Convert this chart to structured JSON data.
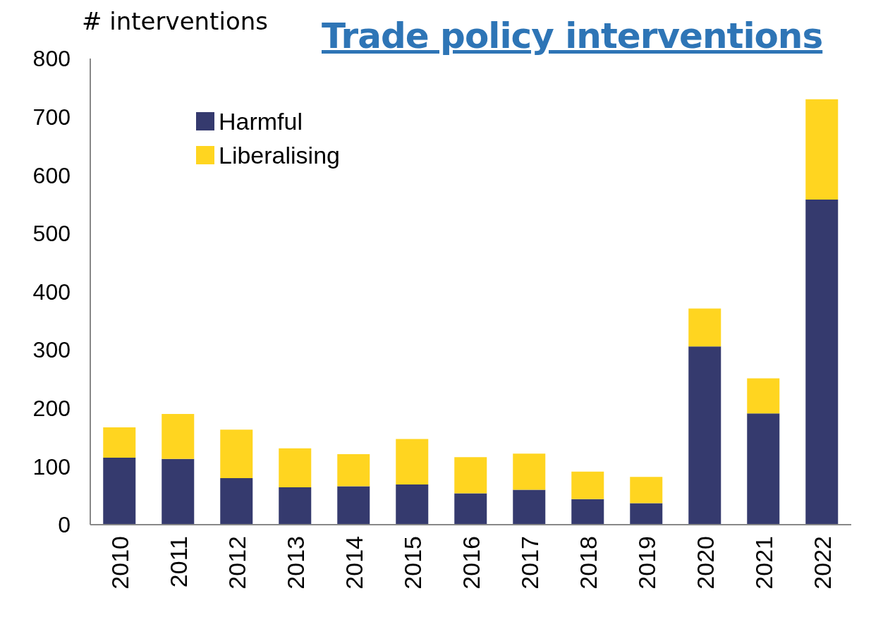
{
  "chart_data": {
    "type": "bar",
    "title": "Trade policy interventions",
    "ylabel": "# interventions",
    "stacked": true,
    "categories": [
      "2010",
      "2011",
      "2012",
      "2013",
      "2014",
      "2015",
      "2016",
      "2017",
      "2018",
      "2019",
      "2020",
      "2021",
      "2022"
    ],
    "series": [
      {
        "name": "Harmful",
        "color": "#353a6e",
        "values": [
          115,
          113,
          80,
          64,
          66,
          69,
          54,
          60,
          44,
          37,
          306,
          191,
          558
        ]
      },
      {
        "name": "Liberalising",
        "color": "#ffd520",
        "values": [
          52,
          77,
          83,
          67,
          55,
          78,
          62,
          62,
          47,
          45,
          65,
          60,
          172
        ]
      }
    ],
    "ylim": [
      0,
      800
    ],
    "yticks": [
      0,
      100,
      200,
      300,
      400,
      500,
      600,
      700,
      800
    ],
    "grid": false,
    "legend": "top left"
  }
}
